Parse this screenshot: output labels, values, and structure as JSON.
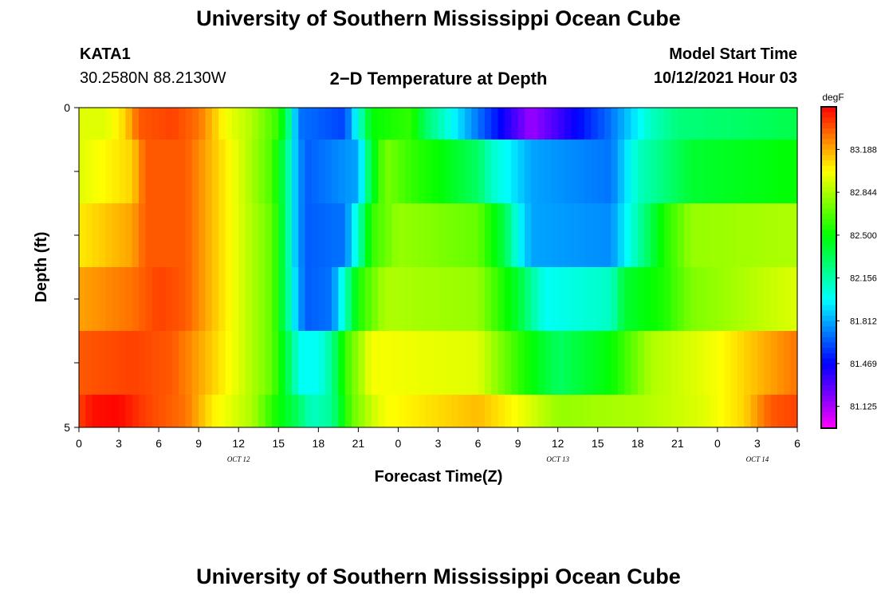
{
  "page": {
    "title_top": "University of Southern Mississippi Ocean Cube",
    "title_bottom": "University of Southern Mississippi Ocean Cube",
    "station": "KATA1",
    "coords": "30.2580N  88.2130W",
    "center_title": "2−D Temperature at Depth",
    "model_start_label": "Model Start Time",
    "model_start_value": "10/12/2021 Hour 03"
  },
  "chart_data": {
    "type": "heatmap",
    "xlabel": "Forecast Time(Z)",
    "ylabel": "Depth (ft)",
    "x_tick_labels": [
      "0",
      "3",
      "6",
      "9",
      "12",
      "15",
      "18",
      "21",
      "0",
      "3",
      "6",
      "9",
      "12",
      "15",
      "18",
      "21",
      "0",
      "3",
      "6"
    ],
    "x_range_hours": [
      0,
      54
    ],
    "y_tick_labels": [
      "0",
      "5"
    ],
    "ylim": [
      0,
      5
    ],
    "date_labels": [
      {
        "text": "OCT 12",
        "hour": 12
      },
      {
        "text": "OCT 13",
        "hour": 36
      },
      {
        "text": "OCT 14",
        "hour": 51
      }
    ],
    "colorbar": {
      "unit": "degF",
      "tick_labels": [
        "83.188",
        "82.844",
        "82.500",
        "82.156",
        "81.812",
        "81.469",
        "81.125"
      ],
      "tick_values": [
        83.188,
        82.844,
        82.5,
        82.156,
        81.812,
        81.469,
        81.125
      ],
      "range": [
        80.95,
        83.53
      ]
    },
    "depth_rows": [
      {
        "depth": "0.0-0.5",
        "keyframes": [
          [
            0,
            82.95
          ],
          [
            2,
            82.95
          ],
          [
            3.5,
            83.1
          ],
          [
            4.5,
            83.35
          ],
          [
            7,
            83.4
          ],
          [
            9,
            83.3
          ],
          [
            10,
            83.15
          ],
          [
            11,
            83.0
          ],
          [
            13,
            82.85
          ],
          [
            15,
            82.6
          ],
          [
            15.8,
            82.2
          ],
          [
            16.5,
            81.7
          ],
          [
            20,
            81.6
          ],
          [
            21,
            82.05
          ],
          [
            22,
            82.5
          ],
          [
            25,
            82.6
          ],
          [
            26,
            82.3
          ],
          [
            28,
            82.0
          ],
          [
            30,
            81.7
          ],
          [
            34,
            81.15
          ],
          [
            40,
            81.7
          ],
          [
            43,
            82.1
          ],
          [
            45,
            82.25
          ],
          [
            50,
            82.3
          ],
          [
            54,
            82.35
          ]
        ]
      },
      {
        "depth": "0.5-1.5",
        "keyframes": [
          [
            0,
            82.95
          ],
          [
            4,
            83.1
          ],
          [
            5,
            83.35
          ],
          [
            8,
            83.35
          ],
          [
            10,
            83.15
          ],
          [
            12,
            82.95
          ],
          [
            14.5,
            82.65
          ],
          [
            15.5,
            82.3
          ],
          [
            16.2,
            81.9
          ],
          [
            17,
            81.65
          ],
          [
            21,
            81.8
          ],
          [
            21.8,
            82.3
          ],
          [
            23,
            82.75
          ],
          [
            25,
            82.6
          ],
          [
            27,
            82.5
          ],
          [
            30,
            82.3
          ],
          [
            31,
            82.1
          ],
          [
            34,
            81.8
          ],
          [
            40,
            81.7
          ],
          [
            42,
            82.1
          ],
          [
            46,
            82.4
          ],
          [
            54,
            82.5
          ]
        ]
      },
      {
        "depth": "1.5-2.5",
        "keyframes": [
          [
            0,
            83.05
          ],
          [
            4,
            83.2
          ],
          [
            5,
            83.35
          ],
          [
            8,
            83.35
          ],
          [
            10,
            83.15
          ],
          [
            12,
            82.95
          ],
          [
            14.5,
            82.7
          ],
          [
            15.5,
            82.3
          ],
          [
            16.2,
            81.9
          ],
          [
            17,
            81.65
          ],
          [
            20,
            81.7
          ],
          [
            21,
            82.1
          ],
          [
            22,
            82.6
          ],
          [
            24,
            82.8
          ],
          [
            30,
            82.7
          ],
          [
            32,
            82.35
          ],
          [
            33,
            82.0
          ],
          [
            34,
            81.8
          ],
          [
            40,
            81.75
          ],
          [
            42,
            82.15
          ],
          [
            44,
            82.55
          ],
          [
            46,
            82.8
          ],
          [
            54,
            82.85
          ]
        ]
      },
      {
        "depth": "2.5-3.5",
        "keyframes": [
          [
            0,
            83.2
          ],
          [
            4,
            83.3
          ],
          [
            6,
            83.4
          ],
          [
            8,
            83.35
          ],
          [
            10,
            83.15
          ],
          [
            12,
            82.95
          ],
          [
            14.5,
            82.7
          ],
          [
            15.5,
            82.3
          ],
          [
            16.3,
            81.9
          ],
          [
            17,
            81.65
          ],
          [
            19,
            81.7
          ],
          [
            20,
            82.1
          ],
          [
            21,
            82.55
          ],
          [
            23,
            82.85
          ],
          [
            30,
            82.8
          ],
          [
            33,
            82.4
          ],
          [
            35,
            82.0
          ],
          [
            40,
            82.1
          ],
          [
            41,
            82.4
          ],
          [
            44,
            82.55
          ],
          [
            46,
            82.75
          ],
          [
            54,
            82.95
          ]
        ]
      },
      {
        "depth": "3.5-4.5",
        "keyframes": [
          [
            0,
            83.35
          ],
          [
            4,
            83.4
          ],
          [
            7,
            83.35
          ],
          [
            9,
            83.2
          ],
          [
            12,
            82.95
          ],
          [
            14.5,
            82.7
          ],
          [
            15.8,
            82.3
          ],
          [
            16.6,
            82.0
          ],
          [
            18,
            82.0
          ],
          [
            19,
            82.2
          ],
          [
            20,
            82.6
          ],
          [
            22,
            83.0
          ],
          [
            30,
            82.95
          ],
          [
            33,
            82.6
          ],
          [
            36,
            82.3
          ],
          [
            40,
            82.5
          ],
          [
            43,
            82.85
          ],
          [
            48,
            83.0
          ],
          [
            52,
            83.2
          ],
          [
            54,
            83.3
          ]
        ]
      },
      {
        "depth": "4.5-5.0",
        "keyframes": [
          [
            0,
            83.4
          ],
          [
            1,
            83.5
          ],
          [
            3,
            83.52
          ],
          [
            5,
            83.4
          ],
          [
            8,
            83.3
          ],
          [
            10,
            83.05
          ],
          [
            13,
            82.85
          ],
          [
            15,
            82.5
          ],
          [
            16.5,
            82.3
          ],
          [
            17.5,
            82.1
          ],
          [
            19,
            82.2
          ],
          [
            20.5,
            82.7
          ],
          [
            22,
            82.9
          ],
          [
            23,
            83.0
          ],
          [
            30,
            83.15
          ],
          [
            33,
            83.0
          ],
          [
            36,
            82.8
          ],
          [
            42,
            82.85
          ],
          [
            47,
            82.95
          ],
          [
            50,
            83.1
          ],
          [
            52,
            83.35
          ],
          [
            54,
            83.4
          ]
        ]
      }
    ]
  }
}
